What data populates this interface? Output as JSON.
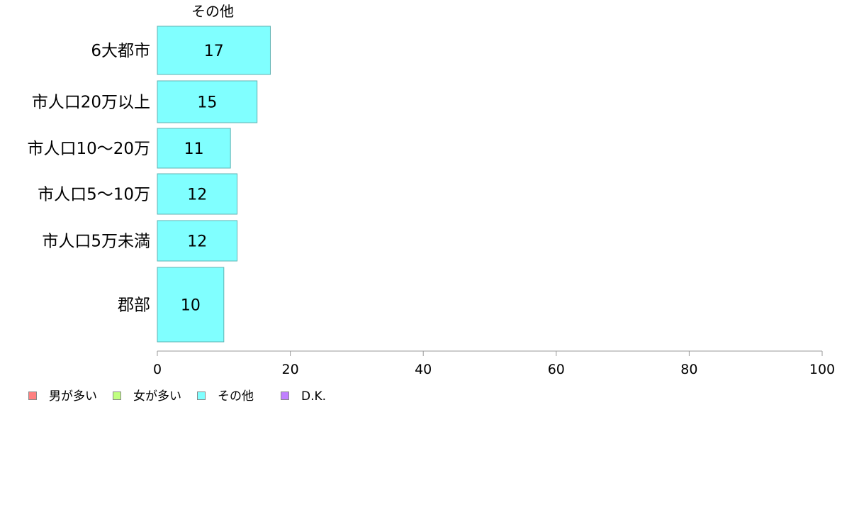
{
  "chart_data": {
    "type": "bar",
    "orientation": "horizontal",
    "title": "その他",
    "categories": [
      "6大都市",
      "市人口20万以上",
      "市人口10〜20万",
      "市人口5〜10万",
      "市人口5万未満",
      "郡部"
    ],
    "series": [
      {
        "name": "その他",
        "values": [
          17,
          15,
          11,
          12,
          12,
          10
        ],
        "color": "#80ffff"
      }
    ],
    "xlim": [
      0,
      100
    ],
    "xticks": [
      0,
      20,
      40,
      60,
      80,
      100
    ],
    "grid": false,
    "legend_position": "bottom-left"
  },
  "legend": {
    "items": [
      {
        "label": "男が多い",
        "color": "#ff8080"
      },
      {
        "label": "女が多い",
        "color": "#c0ff80"
      },
      {
        "label": "その他",
        "color": "#80ffff"
      },
      {
        "label": "D.K.",
        "color": "#c080ff"
      }
    ]
  }
}
